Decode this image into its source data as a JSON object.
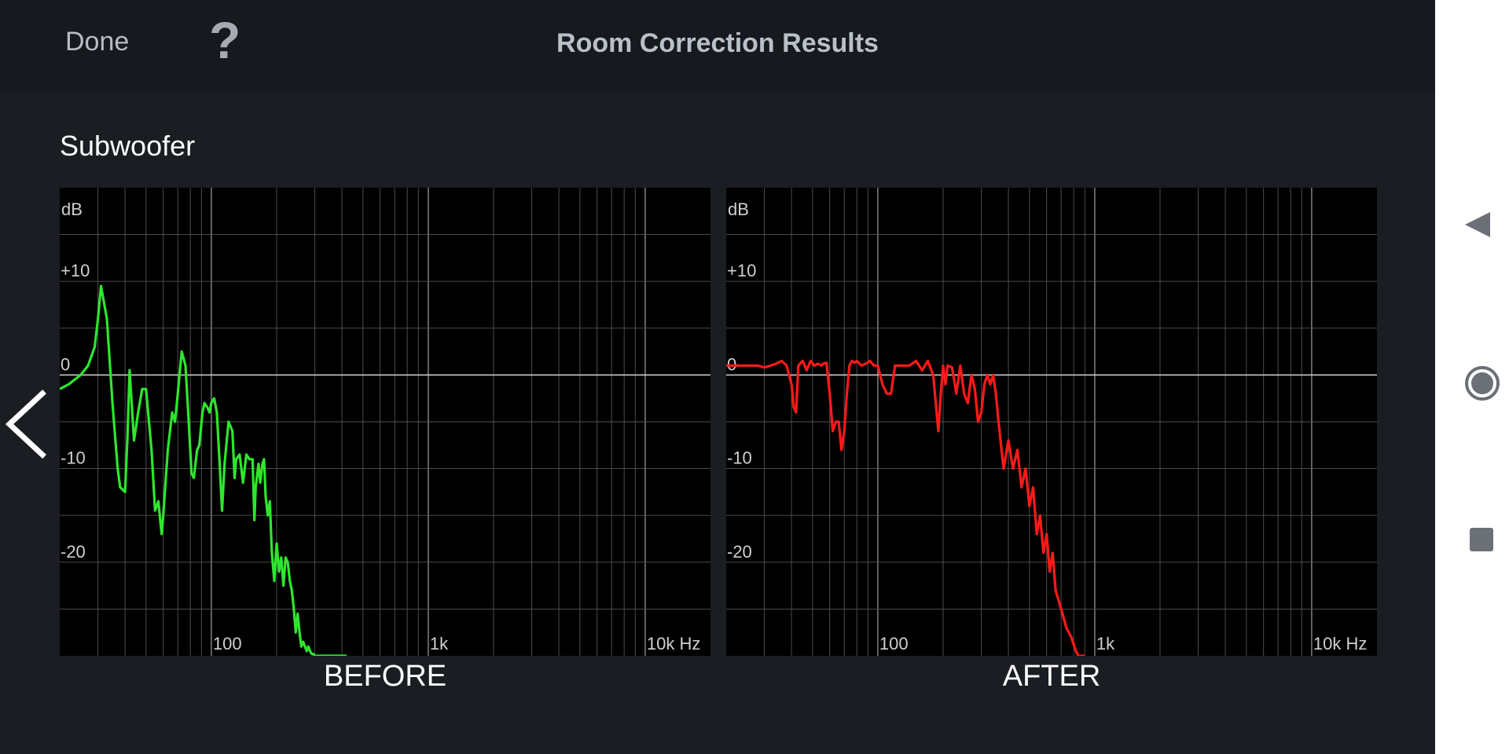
{
  "header": {
    "done_label": "Done",
    "help_label": "?",
    "title": "Room Correction Results"
  },
  "section": {
    "title": "Subwoofer"
  },
  "icons": {
    "prev": "chevron-left-icon",
    "back": "triangle-back-icon",
    "home": "circle-home-icon",
    "recents": "square-recents-icon"
  },
  "colors": {
    "before_trace": "#2ee62e",
    "after_trace": "#ff1a1a",
    "plot_background": "#000000",
    "grid": "#555555",
    "zero_line": "#cccccc"
  },
  "chart_data": [
    {
      "type": "line",
      "caption": "BEFORE",
      "xscale": "log",
      "xlim": [
        20,
        20000
      ],
      "ylim": [
        -30,
        20
      ],
      "y_unit_label": "dB",
      "y_tick_labels": [
        {
          "value": 10,
          "label": "+10"
        },
        {
          "value": 0,
          "label": "0"
        },
        {
          "value": -10,
          "label": "-10"
        },
        {
          "value": -20,
          "label": "-20"
        }
      ],
      "x_tick_labels": [
        {
          "value": 100,
          "label": "100"
        },
        {
          "value": 1000,
          "label": "1k"
        },
        {
          "value": 10000,
          "label": "10k Hz"
        }
      ],
      "grid": true,
      "series": [
        {
          "color": "#2ee62e",
          "x": [
            20,
            22,
            25,
            27,
            28,
            29,
            30,
            31,
            33,
            35,
            37,
            38,
            40,
            41,
            42,
            44,
            46,
            48,
            50,
            53,
            55,
            57,
            59,
            60,
            63,
            66,
            68,
            70,
            73,
            76,
            78,
            81,
            83,
            86,
            88,
            91,
            93,
            96,
            98,
            100,
            103,
            106,
            109,
            112,
            115,
            120,
            125,
            128,
            130,
            135,
            140,
            145,
            150,
            155,
            158,
            160,
            165,
            168,
            172,
            175,
            178,
            182,
            186,
            190,
            195,
            200,
            205,
            210,
            215,
            220,
            225,
            230,
            235,
            240,
            245,
            250,
            255,
            260,
            265,
            270,
            275,
            280,
            285,
            290,
            295,
            300,
            310,
            320,
            330,
            340,
            350,
            360,
            370,
            380,
            390,
            400,
            410,
            420
          ],
          "y": [
            -1.5,
            -1,
            0,
            1,
            2,
            3,
            6,
            9.5,
            6,
            -3,
            -10,
            -12,
            -12.5,
            -7,
            0.5,
            -7,
            -4,
            -1.5,
            -1.5,
            -8,
            -14.5,
            -13.5,
            -17,
            -15,
            -8,
            -4,
            -5,
            -2,
            2.5,
            1,
            -3.5,
            -10.5,
            -11,
            -8,
            -7.5,
            -4,
            -3,
            -3.5,
            -4,
            -3,
            -2.5,
            -4,
            -9,
            -14.5,
            -9.5,
            -5,
            -6,
            -11,
            -9,
            -8.5,
            -11.5,
            -8.5,
            -9,
            -9,
            -15.5,
            -12,
            -9.5,
            -11.5,
            -9.5,
            -9,
            -13,
            -15,
            -13.5,
            -19,
            -22,
            -18,
            -21,
            -19.5,
            -22.5,
            -19.5,
            -20,
            -22,
            -23,
            -25,
            -27.5,
            -25.5,
            -27.5,
            -29,
            -28.5,
            -29,
            -29.5,
            -29,
            -29.5,
            -29.8,
            -29.8,
            -30,
            -30,
            -30,
            -30,
            -30,
            -30,
            -30,
            -30,
            -30,
            -30,
            -30,
            -30,
            -30
          ]
        }
      ]
    },
    {
      "type": "line",
      "caption": "AFTER",
      "xscale": "log",
      "xlim": [
        20,
        20000
      ],
      "ylim": [
        -30,
        20
      ],
      "y_unit_label": "dB",
      "y_tick_labels": [
        {
          "value": 10,
          "label": "+10"
        },
        {
          "value": 0,
          "label": "0"
        },
        {
          "value": -10,
          "label": "-10"
        },
        {
          "value": -20,
          "label": "-20"
        }
      ],
      "x_tick_labels": [
        {
          "value": 100,
          "label": "100"
        },
        {
          "value": 1000,
          "label": "1k"
        },
        {
          "value": 10000,
          "label": "10k Hz"
        }
      ],
      "grid": true,
      "series": [
        {
          "color": "#ff1a1a",
          "x": [
            20,
            22,
            25,
            28,
            30,
            32,
            34,
            36,
            38,
            40,
            41,
            42,
            43,
            45,
            47,
            49,
            51,
            53,
            55,
            56,
            58,
            60,
            62,
            64,
            66,
            68,
            70,
            72,
            74,
            76,
            78,
            80,
            84,
            88,
            92,
            96,
            100,
            105,
            110,
            115,
            120,
            125,
            130,
            140,
            150,
            160,
            170,
            180,
            190,
            195,
            200,
            205,
            210,
            220,
            230,
            240,
            250,
            260,
            270,
            280,
            290,
            300,
            310,
            320,
            330,
            340,
            350,
            360,
            380,
            400,
            420,
            440,
            460,
            480,
            500,
            520,
            540,
            560,
            580,
            600,
            620,
            640,
            660,
            680,
            700,
            720,
            740,
            760,
            780,
            800,
            820,
            840,
            860,
            880,
            900
          ],
          "y": [
            1,
            1,
            1,
            1,
            0.8,
            1,
            1.2,
            1.5,
            1,
            -1,
            -3.5,
            -4,
            1,
            1.5,
            0.5,
            1.5,
            1,
            1.2,
            1,
            1.2,
            1.3,
            -2,
            -6,
            -5,
            -5,
            -8,
            -6,
            -2,
            1,
            1.5,
            1.3,
            1.5,
            1,
            1.2,
            1.5,
            1,
            1,
            -1,
            -2,
            -2,
            1,
            1,
            1,
            1,
            1.5,
            0.5,
            1.5,
            0,
            -6,
            -2,
            1,
            -1,
            1,
            0.8,
            -2,
            1,
            -2,
            -3,
            0,
            -1.5,
            -5,
            -4,
            -1,
            0,
            -1,
            0,
            -2,
            -5,
            -10,
            -7,
            -10,
            -8,
            -12,
            -10,
            -14,
            -12,
            -17,
            -15,
            -19,
            -17,
            -21,
            -19,
            -23,
            -24,
            -25,
            -26,
            -27,
            -27.5,
            -28,
            -28.8,
            -29.5,
            -30,
            -30,
            -30,
            -30
          ]
        }
      ]
    }
  ]
}
